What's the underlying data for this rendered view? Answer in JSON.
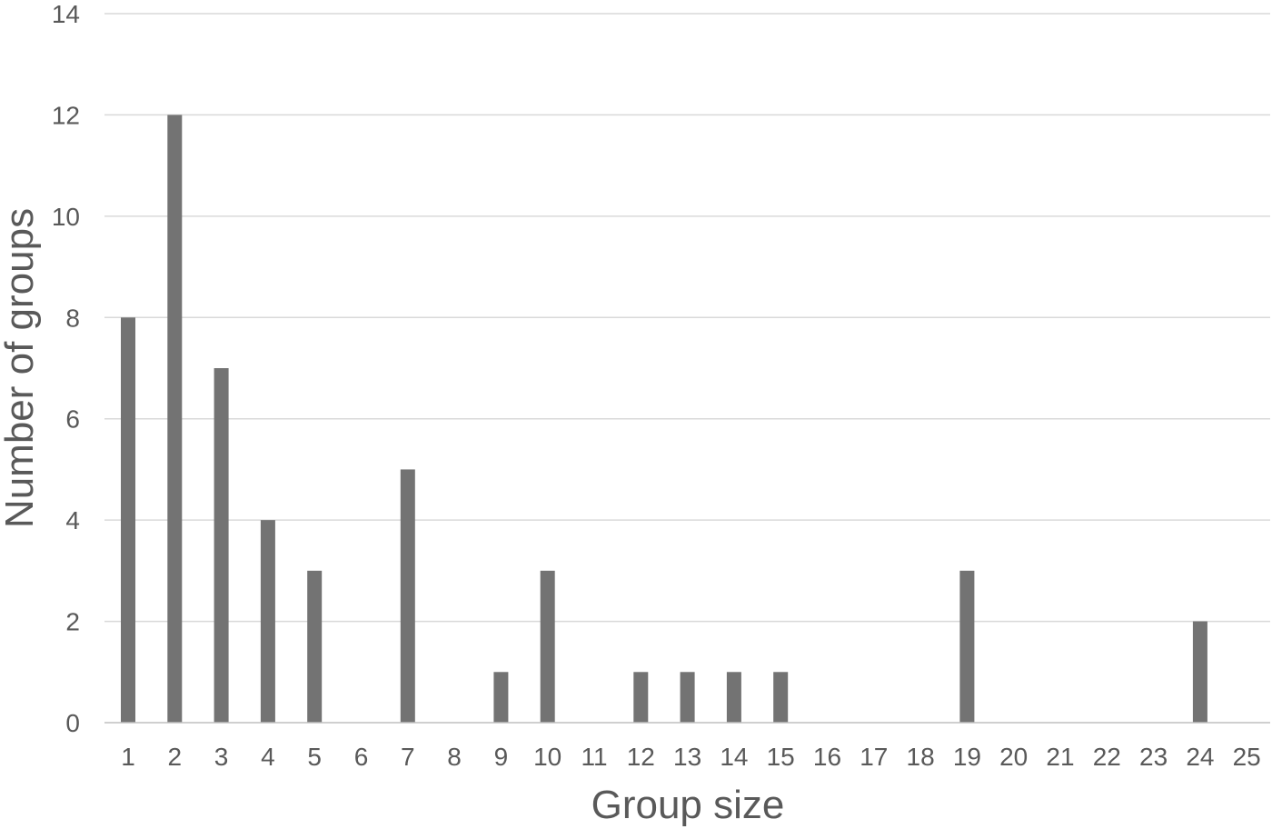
{
  "chart_data": {
    "type": "bar",
    "xlabel": "Group size",
    "ylabel": "Number of groups",
    "categories": [
      "1",
      "2",
      "3",
      "4",
      "5",
      "6",
      "7",
      "8",
      "9",
      "10",
      "11",
      "12",
      "13",
      "14",
      "15",
      "16",
      "17",
      "18",
      "19",
      "20",
      "21",
      "22",
      "23",
      "24",
      "25"
    ],
    "values": [
      8,
      12,
      7,
      4,
      3,
      0,
      5,
      0,
      1,
      3,
      0,
      1,
      1,
      1,
      1,
      0,
      0,
      0,
      3,
      0,
      0,
      0,
      0,
      2,
      0
    ],
    "ylim": [
      0,
      14
    ],
    "yticks": [
      0,
      2,
      4,
      6,
      8,
      10,
      12,
      14
    ],
    "grid": true,
    "colors": {
      "bar": "#737373",
      "grid": "#d9d9d9",
      "axis": "#bfbfbf",
      "text": "#595959"
    }
  }
}
